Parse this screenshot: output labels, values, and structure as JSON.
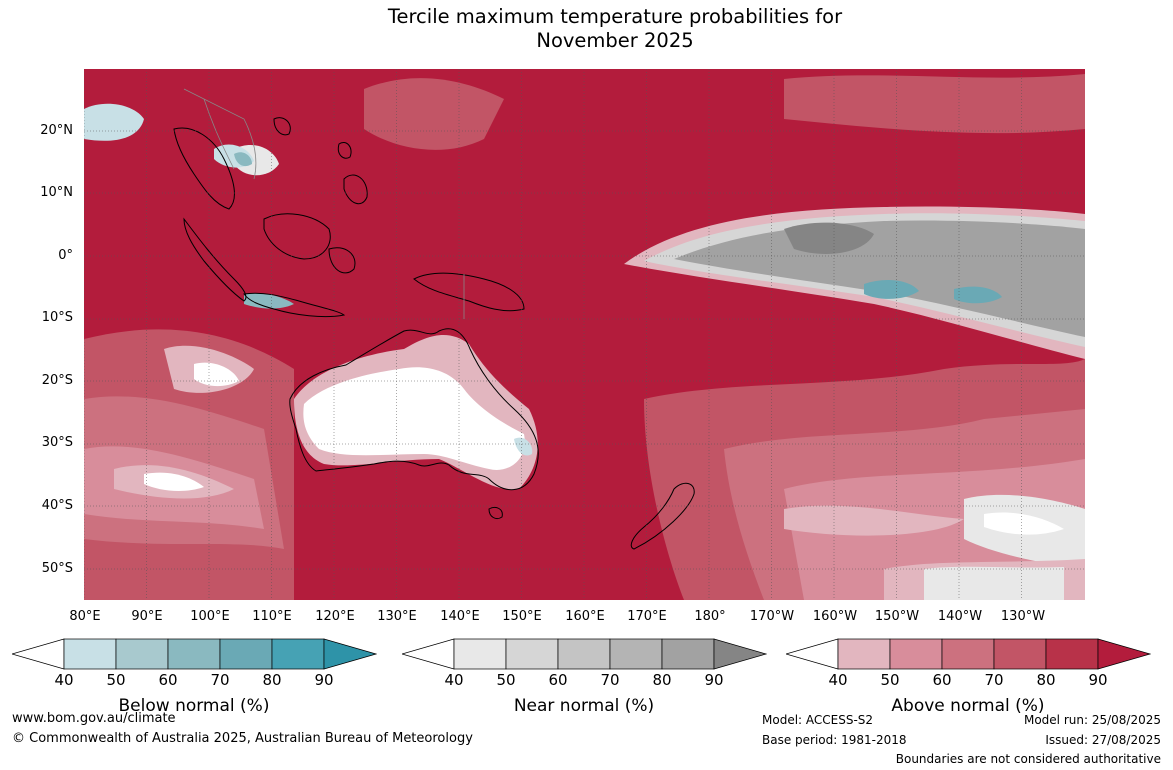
{
  "title_line1": "Tercile maximum temperature probabilities for",
  "title_line2": "November 2025",
  "colors": {
    "above": [
      "#e2b6bf",
      "#d88d9b",
      "#cc717f",
      "#c25566",
      "#b83249",
      "#b31c3c"
    ],
    "near": [
      "#e8e8e8",
      "#d6d6d6",
      "#c4c4c4",
      "#b4b4b4",
      "#a2a2a2",
      "#858585"
    ],
    "below": [
      "#c8e0e6",
      "#a8c9ce",
      "#8ab9c0",
      "#6aa9b5",
      "#46a2b4",
      "#2e93a8"
    ],
    "land_border": "#000000",
    "region_border": "#888888"
  },
  "map": {
    "lat_labels": [
      "20°N",
      "10°N",
      "0°",
      "10°S",
      "20°S",
      "30°S",
      "40°S",
      "50°S"
    ],
    "lon_labels": [
      "80°E",
      "90°E",
      "100°E",
      "110°E",
      "120°E",
      "130°E",
      "140°E",
      "150°E",
      "160°E",
      "170°E",
      "180°",
      "170°W",
      "160°W",
      "150°W",
      "140°W",
      "130°W"
    ]
  },
  "legends": {
    "below": {
      "title": "Below normal (%)",
      "ticks": [
        "40",
        "50",
        "60",
        "70",
        "80",
        "90"
      ]
    },
    "near": {
      "title": "Near normal (%)",
      "ticks": [
        "40",
        "50",
        "60",
        "70",
        "80",
        "90"
      ]
    },
    "above": {
      "title": "Above normal (%)",
      "ticks": [
        "40",
        "50",
        "60",
        "70",
        "80",
        "90"
      ]
    }
  },
  "footer": {
    "url": "www.bom.gov.au/climate",
    "copyright": "© Commonwealth of Australia 2025, Australian Bureau of Meteorology",
    "model": "Model: ACCESS-S2",
    "base_period": "Base period: 1981-2018",
    "model_run": "Model run: 25/08/2025",
    "issued": "Issued: 27/08/2025",
    "disclaimer": "Boundaries are not considered authoritative"
  }
}
